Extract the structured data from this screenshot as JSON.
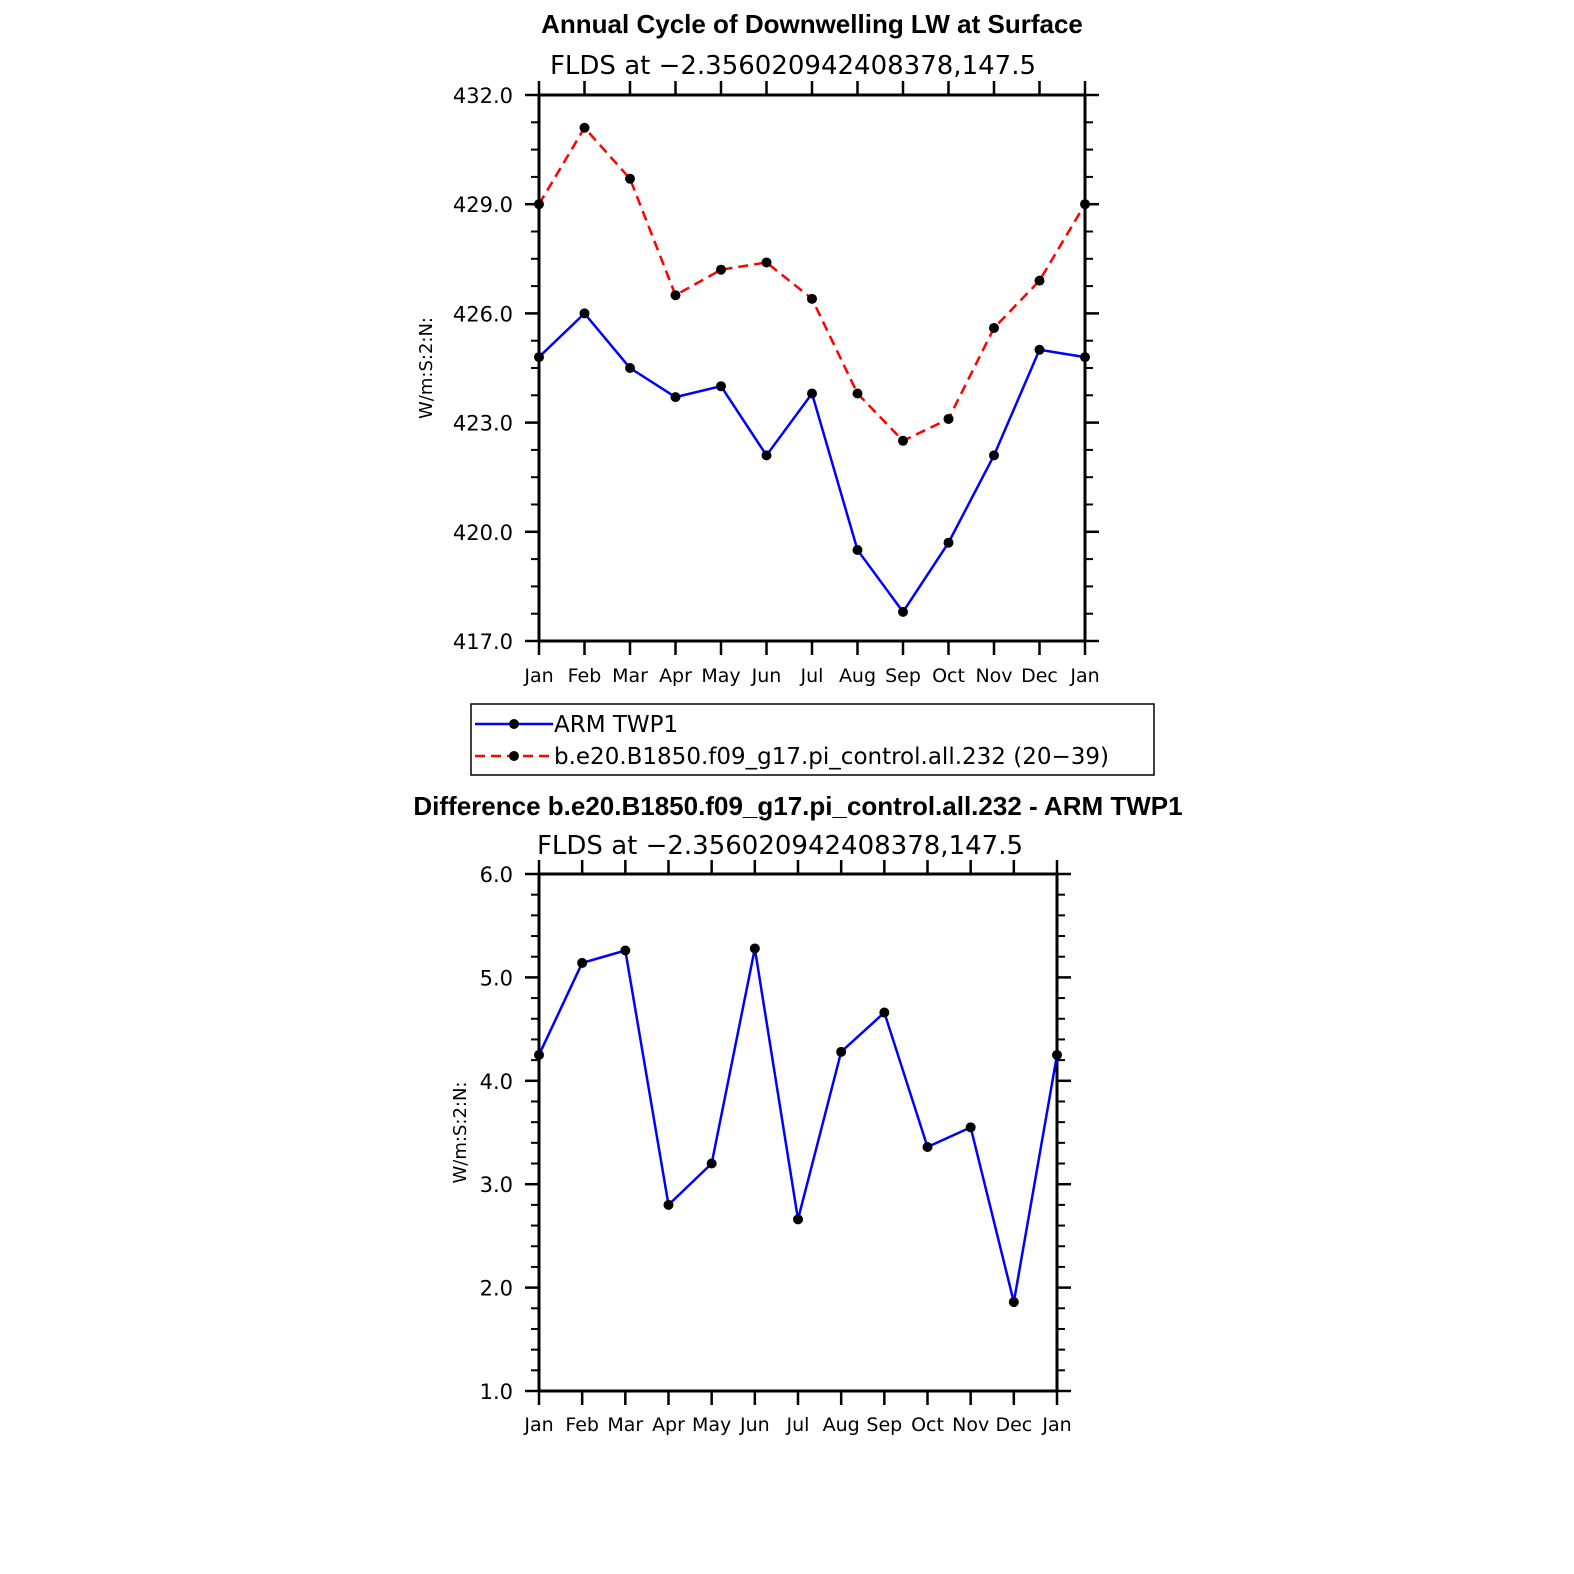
{
  "chart_data": [
    {
      "type": "line",
      "title": "Annual Cycle of Downwelling LW at Surface",
      "subtitle": "FLDS at −2.356020942408378,147.5",
      "ylabel": "W/m:S:2:N:",
      "xlabel": "",
      "categories": [
        "Jan",
        "Feb",
        "Mar",
        "Apr",
        "May",
        "Jun",
        "Jul",
        "Aug",
        "Sep",
        "Oct",
        "Nov",
        "Dec",
        "Jan"
      ],
      "ylim": [
        417.0,
        432.0
      ],
      "yticks": [
        "417.0",
        "420.0",
        "423.0",
        "426.0",
        "429.0",
        "432.0"
      ],
      "series": [
        {
          "name": "ARM TWP1",
          "color": "#0000ff",
          "dash": "solid",
          "values": [
            424.8,
            426.0,
            424.5,
            423.7,
            424.0,
            422.1,
            423.8,
            419.5,
            417.8,
            419.7,
            422.1,
            425.0,
            424.8
          ]
        },
        {
          "name": "b.e20.B1850.f09_g17.pi_control.all.232 (20−39)",
          "color": "#ff0000",
          "dash": "dashed",
          "values": [
            429.0,
            431.1,
            429.7,
            426.5,
            427.2,
            427.4,
            426.4,
            423.8,
            422.5,
            423.1,
            425.6,
            426.9,
            429.0
          ]
        }
      ],
      "legend": "bottom",
      "grid": false
    },
    {
      "type": "line",
      "title": "Difference b.e20.B1850.f09_g17.pi_control.all.232 - ARM TWP1",
      "subtitle": "FLDS at −2.356020942408378,147.5",
      "ylabel": "W/m:S:2:N:",
      "xlabel": "",
      "categories": [
        "Jan",
        "Feb",
        "Mar",
        "Apr",
        "May",
        "Jun",
        "Jul",
        "Aug",
        "Sep",
        "Oct",
        "Nov",
        "Dec",
        "Jan"
      ],
      "ylim": [
        1.0,
        6.0
      ],
      "yticks": [
        "1.0",
        "2.0",
        "3.0",
        "4.0",
        "5.0",
        "6.0"
      ],
      "series": [
        {
          "color": "#0000ff",
          "dash": "solid",
          "values": [
            4.25,
            5.14,
            5.26,
            2.8,
            3.2,
            5.28,
            2.66,
            4.28,
            4.66,
            3.36,
            3.55,
            1.86,
            4.25
          ]
        }
      ],
      "grid": false
    }
  ]
}
